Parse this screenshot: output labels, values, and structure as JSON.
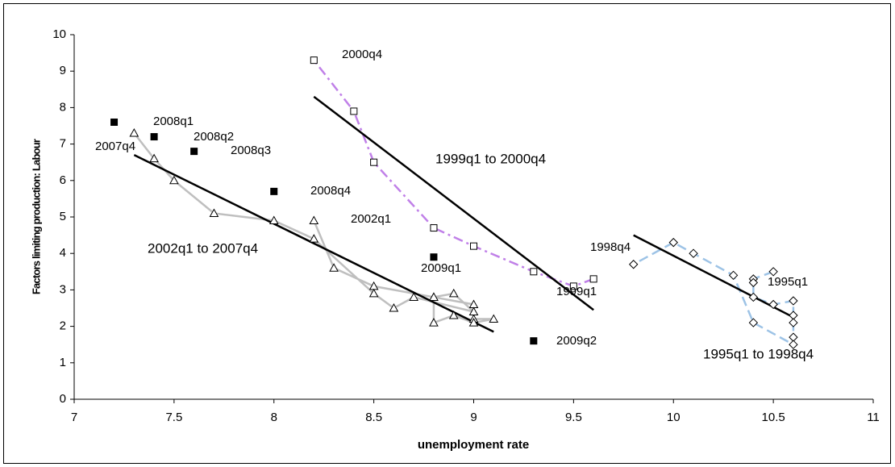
{
  "chart_data": {
    "type": "scatter",
    "x_label": "unemployment rate",
    "y_label": "Factors limiting production: Labour",
    "xlim": [
      7,
      11
    ],
    "xticks": [
      7,
      7.5,
      8,
      8.5,
      9,
      9.5,
      10,
      10.5,
      11
    ],
    "ylim": [
      0,
      10
    ],
    "yticks": [
      0,
      1,
      2,
      3,
      4,
      5,
      6,
      7,
      8,
      9,
      10
    ],
    "series": [
      {
        "marker": "triangle",
        "color": "#000000",
        "line_color": "#bfbfbf",
        "line_style": "solid",
        "x": [
          8.2,
          8.3,
          8.5,
          8.8,
          9.0,
          9.0,
          9.1,
          9.0,
          8.9,
          8.8,
          8.8,
          8.9,
          9.0,
          8.7,
          8.6,
          8.5,
          8.2,
          8.0,
          7.7,
          7.5,
          7.4,
          7.3
        ],
        "y": [
          4.9,
          3.6,
          3.1,
          2.8,
          2.6,
          2.2,
          2.2,
          2.1,
          2.3,
          2.1,
          2.8,
          2.9,
          2.4,
          2.8,
          2.5,
          2.9,
          4.4,
          4.9,
          5.1,
          6.0,
          6.6,
          7.3
        ]
      },
      {
        "marker": "filled-square",
        "color": "#000000",
        "x": [
          7.2,
          7.4,
          7.6,
          8.0,
          8.8,
          9.3
        ],
        "y": [
          7.6,
          7.2,
          6.8,
          5.7,
          3.9,
          1.6
        ]
      },
      {
        "marker": "square",
        "color": "#000000",
        "line_color": "#c080e8",
        "line_style": "dashdot",
        "x": [
          9.6,
          9.5,
          9.3,
          9.0,
          8.8,
          8.5,
          8.4,
          8.2
        ],
        "y": [
          3.3,
          3.1,
          3.5,
          4.2,
          4.7,
          6.5,
          7.9,
          9.3
        ]
      },
      {
        "marker": "diamond",
        "color": "#000000",
        "line_color": "#9dc3e6",
        "line_style": "dashed",
        "x": [
          10.5,
          10.4,
          10.4,
          10.4,
          10.5,
          10.6,
          10.6,
          10.6,
          10.6,
          10.6,
          10.4,
          10.3,
          10.1,
          10.0,
          9.8
        ],
        "y": [
          3.5,
          3.3,
          3.2,
          2.8,
          2.6,
          2.7,
          2.3,
          2.1,
          1.7,
          1.5,
          2.1,
          3.4,
          4.0,
          4.3,
          3.7
        ]
      }
    ],
    "trends": [
      {
        "name": "2002q1 to 2007q4",
        "color": "#000000",
        "x": [
          7.3,
          9.1
        ],
        "y": [
          6.7,
          1.85
        ]
      },
      {
        "name": "1999q1 to 2000q4",
        "color": "#000000",
        "x": [
          8.2,
          9.6
        ],
        "y": [
          8.3,
          2.45
        ]
      },
      {
        "name": "1995q1 to 1998q4",
        "color": "#000000",
        "x": [
          9.8,
          10.6
        ],
        "y": [
          4.5,
          2.25
        ]
      }
    ],
    "annotations": [
      "2000q4",
      "2008q1",
      "2008q2",
      "2007q4",
      "2008q3",
      "2008q4",
      "2002q1",
      "2009q1",
      "1999q1",
      "1998q4",
      "1995q1",
      "2009q2"
    ]
  }
}
